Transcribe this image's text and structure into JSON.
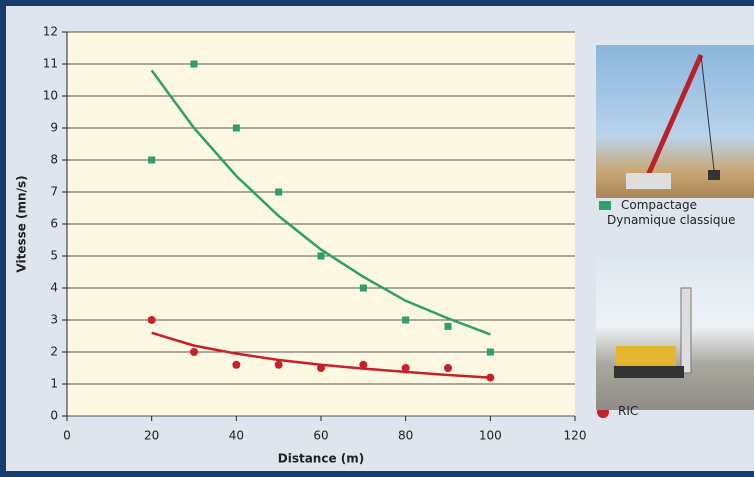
{
  "chart_data": {
    "type": "scatter",
    "xlabel": "Distance (m)",
    "ylabel": "Vitesse (mn/s)",
    "xlim": [
      0,
      120
    ],
    "xticks": [
      0,
      20,
      40,
      60,
      80,
      100,
      120
    ],
    "ylim": [
      0,
      12
    ],
    "yticks": [
      0,
      1,
      2,
      3,
      4,
      5,
      6,
      7,
      8,
      9,
      10,
      11,
      12
    ],
    "grid": true,
    "series": [
      {
        "name": "Compactage Dynamique classique",
        "color": "#2e9e6a",
        "marker": "square",
        "x": [
          20,
          30,
          40,
          50,
          60,
          70,
          80,
          90,
          100
        ],
        "values": [
          8,
          11,
          9,
          7,
          5,
          4,
          3,
          2.8,
          2
        ],
        "trend": {
          "x": [
            20,
            30,
            40,
            50,
            60,
            70,
            80,
            90,
            100
          ],
          "values": [
            10.8,
            9.0,
            7.5,
            6.25,
            5.2,
            4.35,
            3.6,
            3.05,
            2.55
          ]
        }
      },
      {
        "name": "RIC",
        "color": "#c8202a",
        "marker": "circle",
        "x": [
          20,
          30,
          40,
          50,
          60,
          70,
          80,
          90,
          100
        ],
        "values": [
          3,
          2,
          1.6,
          1.6,
          1.5,
          1.6,
          1.5,
          1.5,
          1.2
        ],
        "trend": {
          "x": [
            20,
            30,
            40,
            50,
            60,
            70,
            80,
            90,
            100
          ],
          "values": [
            2.6,
            2.2,
            1.95,
            1.75,
            1.6,
            1.48,
            1.38,
            1.28,
            1.2
          ]
        }
      }
    ]
  }
}
